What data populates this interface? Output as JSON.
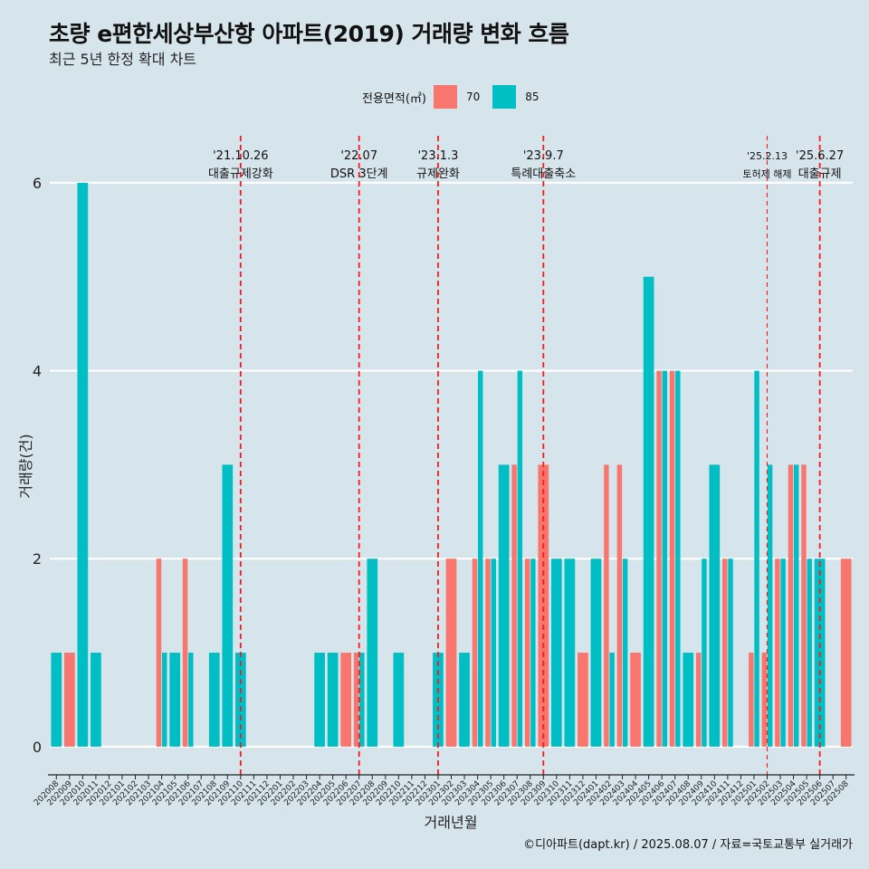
{
  "title": "초량 e편한세상부산항 아파트(2019) 거래량 변화 흐름",
  "subtitle": "최근 5년 한정 확대 차트",
  "legend": {
    "title": "전용면적(㎡)",
    "items": [
      {
        "label": "70",
        "color": "#f8766d"
      },
      {
        "label": "85",
        "color": "#00bfc4"
      }
    ]
  },
  "credit": "©디아파트(dapt.kr) / 2025.08.07 / 자료=국토교통부 실거래가",
  "chart_data": {
    "type": "bar",
    "xlabel": "거래년월",
    "ylabel": "거래량(건)",
    "ylim": [
      -0.3,
      6.5
    ],
    "yticks": [
      0,
      2,
      4,
      6
    ],
    "categories": [
      "202008",
      "202009",
      "202010",
      "202011",
      "202012",
      "202101",
      "202102",
      "202103",
      "202104",
      "202105",
      "202106",
      "202107",
      "202108",
      "202109",
      "202110",
      "202111",
      "202112",
      "202201",
      "202202",
      "202203",
      "202204",
      "202205",
      "202206",
      "202207",
      "202208",
      "202209",
      "202210",
      "202211",
      "202212",
      "202301",
      "202302",
      "202303",
      "202304",
      "202305",
      "202306",
      "202307",
      "202308",
      "202309",
      "202310",
      "202311",
      "202312",
      "202401",
      "202402",
      "202403",
      "202404",
      "202405",
      "202406",
      "202407",
      "202408",
      "202409",
      "202410",
      "202411",
      "202412",
      "202501",
      "202502",
      "202503",
      "202504",
      "202505",
      "202506",
      "202507",
      "202508"
    ],
    "series": [
      {
        "name": "70",
        "color": "#f8766d",
        "values": [
          0,
          1,
          0,
          0,
          0,
          0,
          0,
          0,
          2,
          0,
          2,
          0,
          0,
          0,
          0,
          0,
          0,
          0,
          0,
          0,
          0,
          0,
          1,
          1,
          0,
          0,
          0,
          0,
          0,
          0,
          2,
          0,
          2,
          2,
          0,
          3,
          2,
          3,
          0,
          0,
          1,
          0,
          3,
          3,
          1,
          0,
          4,
          4,
          0,
          1,
          0,
          2,
          0,
          1,
          1,
          2,
          3,
          3,
          0,
          0,
          2
        ]
      },
      {
        "name": "85",
        "color": "#00bfc4",
        "values": [
          1,
          0,
          6,
          1,
          0,
          0,
          0,
          0,
          1,
          1,
          1,
          0,
          1,
          3,
          1,
          0,
          0,
          0,
          0,
          0,
          1,
          1,
          0,
          1,
          2,
          0,
          1,
          0,
          0,
          1,
          0,
          1,
          4,
          2,
          3,
          4,
          2,
          0,
          2,
          2,
          0,
          2,
          1,
          2,
          0,
          5,
          4,
          4,
          1,
          2,
          3,
          2,
          0,
          4,
          3,
          2,
          3,
          2,
          2,
          0,
          0
        ]
      }
    ],
    "events": [
      {
        "at": "202110",
        "date": "'21.10.26",
        "label": "대출규제강화",
        "thick": true
      },
      {
        "at": "202207",
        "date": "'22.07",
        "label": "DSR 3단계",
        "thick": true
      },
      {
        "at": "202301",
        "date": "'23.1.3",
        "label": "규제완화",
        "thick": true
      },
      {
        "at": "202309",
        "date": "'23.9.7",
        "label": "특례대출축소",
        "thick": true
      },
      {
        "at": "202502",
        "date": "'25.2.13",
        "label": "토허제 해제",
        "thick": false
      },
      {
        "at": "202506",
        "date": "'25.6.27",
        "label": "대출규제",
        "thick": true
      }
    ]
  }
}
